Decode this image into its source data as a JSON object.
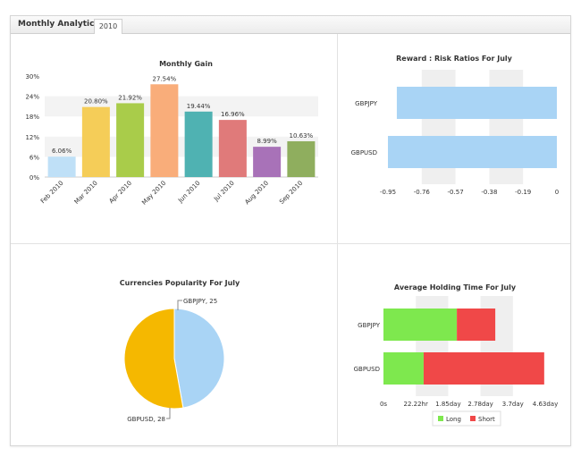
{
  "tabs": {
    "title": "Monthly Analytics",
    "year": "2010"
  },
  "chart_data": [
    {
      "type": "bar",
      "title": "Monthly Gain",
      "categories": [
        "Feb 2010",
        "Mar 2010",
        "Apr 2010",
        "May 2010",
        "Jun 2010",
        "Jul 2010",
        "Aug 2010",
        "Sep 2010"
      ],
      "values": [
        6.06,
        20.8,
        21.92,
        27.54,
        19.44,
        16.96,
        8.99,
        10.63
      ],
      "data_labels": [
        "6.06%",
        "20.80%",
        "21.92%",
        "27.54%",
        "19.44%",
        "16.96%",
        "8.99%",
        "10.63%"
      ],
      "colors": [
        "#bfe0f7",
        "#f5cd58",
        "#a9cc4a",
        "#f9ad7a",
        "#4fb2b2",
        "#e07a7a",
        "#a872b8",
        "#8fae5e"
      ],
      "yticks": [
        "0%",
        "6%",
        "12%",
        "18%",
        "24%",
        "30%"
      ],
      "ylim": [
        0,
        30
      ]
    },
    {
      "type": "bar",
      "orientation": "horizontal",
      "title": "Reward : Risk Ratios For July",
      "categories": [
        "GBPJPY",
        "GBPUSD"
      ],
      "values": [
        -0.9,
        -0.95
      ],
      "color": "#a9d4f5",
      "xticks": [
        "-0.95",
        "-0.76",
        "-0.57",
        "-0.38",
        "-0.19",
        "0"
      ],
      "xlim": [
        -0.95,
        0
      ]
    },
    {
      "type": "pie",
      "title": "Currencies Popularity For July",
      "labels": [
        "GBPJPY",
        "GBPUSD"
      ],
      "values": [
        25,
        28
      ],
      "slice_labels": [
        "GBPJPY, 25",
        "GBPUSD, 28"
      ],
      "colors": [
        "#a9d4f5",
        "#f5b800"
      ]
    },
    {
      "type": "bar",
      "orientation": "horizontal",
      "stacked": true,
      "title": "Average Holding Time For July",
      "categories": [
        "GBPJPY",
        "GBPUSD"
      ],
      "series": [
        {
          "name": "Long",
          "values": [
            2.1,
            1.15
          ],
          "color": "#7ee84e"
        },
        {
          "name": "Short",
          "values": [
            1.1,
            3.45
          ],
          "color": "#f04848"
        }
      ],
      "xticks": [
        "0s",
        "22.22hr",
        "1.85day",
        "2.78day",
        "3.7day",
        "4.63day"
      ],
      "xlim": [
        0,
        4.63
      ],
      "legend": "bottom"
    }
  ]
}
